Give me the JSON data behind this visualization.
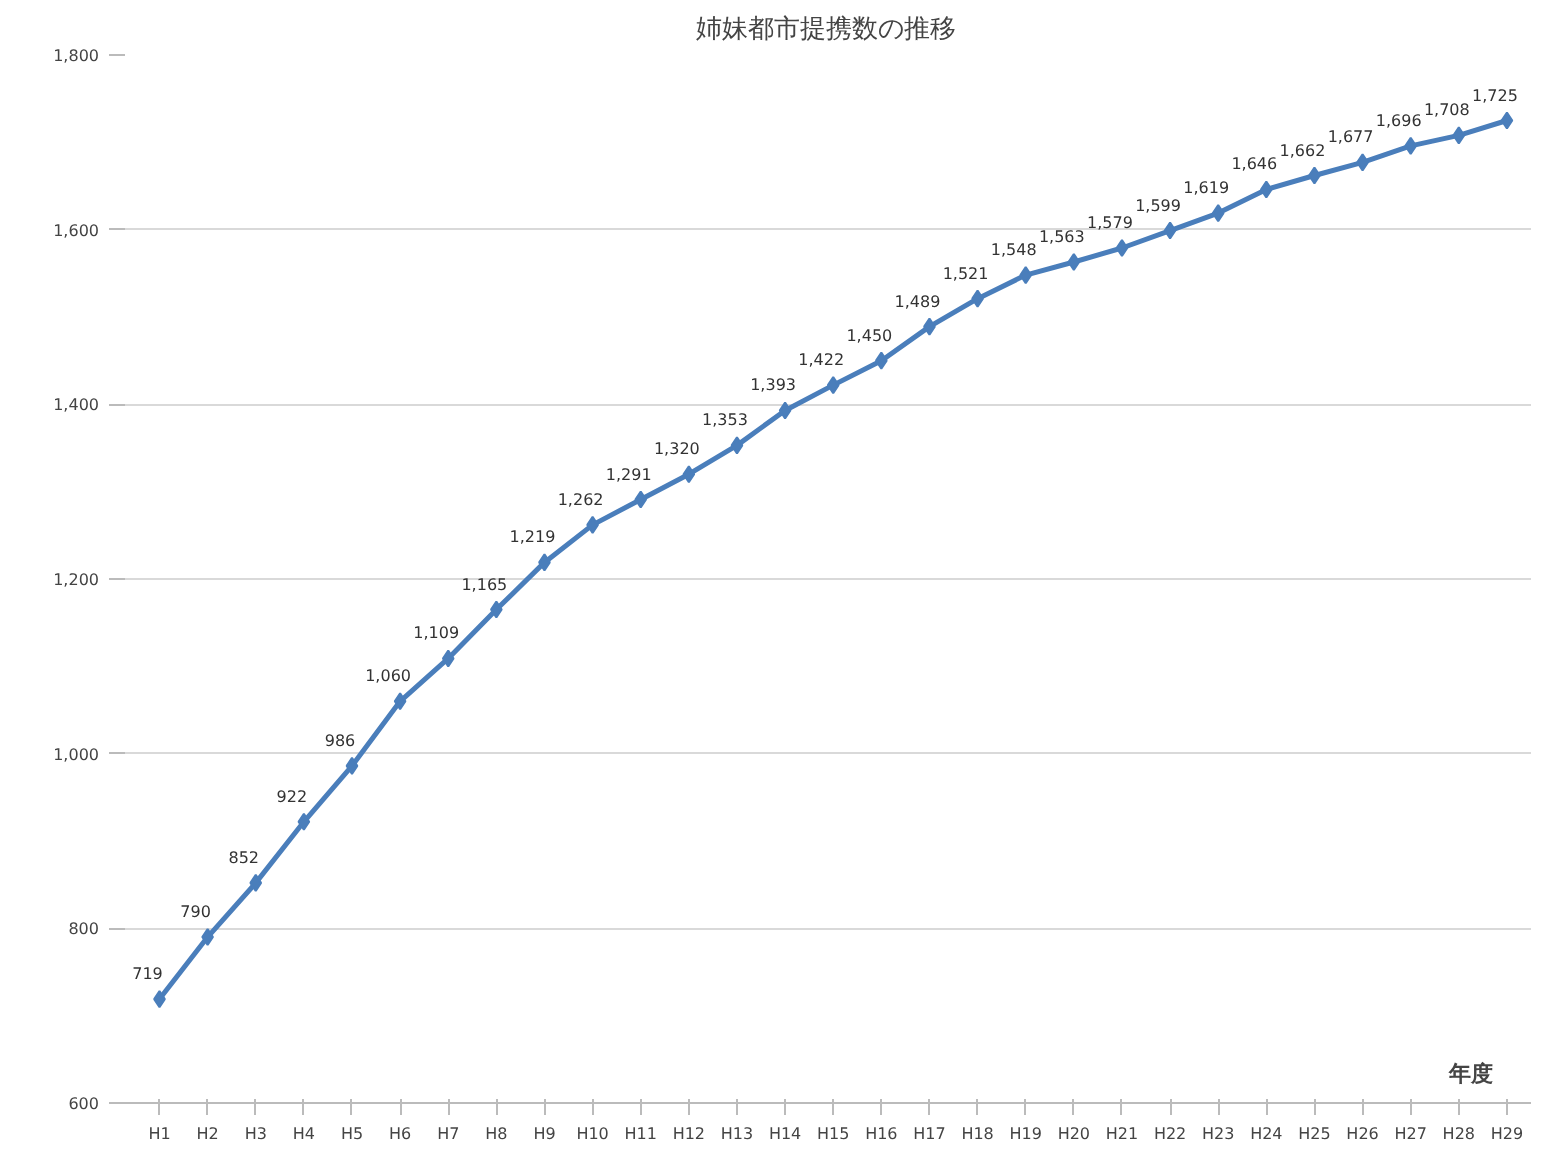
{
  "chart_data": {
    "type": "line",
    "title": "姉妹都市提携数の推移",
    "xlabel": "年度",
    "categories": [
      "H1",
      "H2",
      "H3",
      "H4",
      "H5",
      "H6",
      "H7",
      "H8",
      "H9",
      "H10",
      "H11",
      "H12",
      "H13",
      "H14",
      "H15",
      "H16",
      "H17",
      "H18",
      "H19",
      "H20",
      "H21",
      "H22",
      "H23",
      "H24",
      "H25",
      "H26",
      "H27",
      "H28",
      "H29"
    ],
    "series": [
      {
        "color": "#4a7ebb",
        "values": [
          719,
          790,
          852,
          922,
          986,
          1060,
          1109,
          1165,
          1219,
          1262,
          1291,
          1320,
          1353,
          1393,
          1422,
          1450,
          1489,
          1521,
          1548,
          1563,
          1579,
          1599,
          1619,
          1646,
          1662,
          1677,
          1696,
          1708,
          1725
        ],
        "value_labels": [
          "719",
          "790",
          "852",
          "922",
          "986",
          "1,060",
          "1,109",
          "1,165",
          "1,219",
          "1,262",
          "1,291",
          "1,320",
          "1,353",
          "1,393",
          "1,422",
          "1,450",
          "1,489",
          "1,521",
          "1,548",
          "1,563",
          "1,579",
          "1,599",
          "1,619",
          "1,646",
          "1,662",
          "1,677",
          "1,696",
          "1,708",
          "1,725"
        ]
      }
    ],
    "ylim": [
      600,
      1800
    ],
    "yticks": [
      {
        "value": 600,
        "label": "600"
      },
      {
        "value": 800,
        "label": "800"
      },
      {
        "value": 1000,
        "label": "1,000"
      },
      {
        "value": 1200,
        "label": "1,200"
      },
      {
        "value": 1400,
        "label": "1,400"
      },
      {
        "value": 1600,
        "label": "1,600"
      },
      {
        "value": 1800,
        "label": "1,800"
      }
    ],
    "grid": "y",
    "marker": "diamond",
    "line_style": "solid"
  }
}
